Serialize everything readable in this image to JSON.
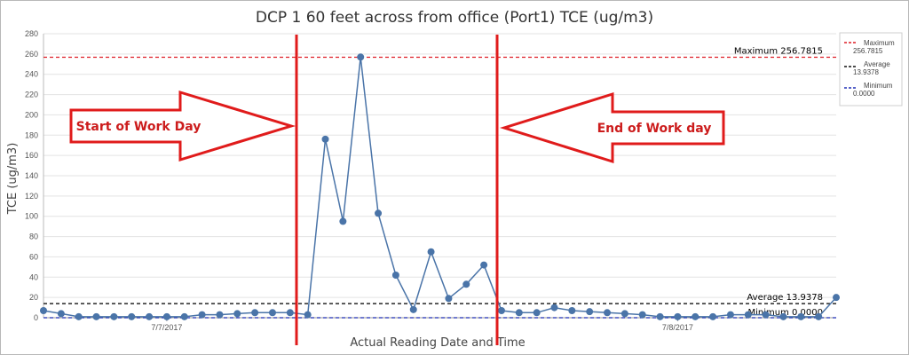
{
  "chart_data": {
    "type": "line",
    "title": "DCP 1 60 feet across from office (Port1) TCE (ug/m3)",
    "xlabel": "Actual Reading Date and Time",
    "ylabel": "TCE (ug/m3)",
    "ylim": [
      0,
      280
    ],
    "yticks": [
      0,
      20,
      40,
      60,
      80,
      100,
      120,
      140,
      160,
      180,
      200,
      220,
      240,
      260,
      280
    ],
    "xtick_labels": [
      "7/7/2017",
      "7/8/2017"
    ],
    "grid": true,
    "legend_position": "right",
    "series": [
      {
        "name": "TCE",
        "color": "#4a74a8",
        "values": [
          7,
          4,
          1,
          1,
          1,
          1,
          1,
          1,
          1,
          3,
          3,
          4,
          5,
          5,
          5,
          3,
          176,
          95,
          257,
          103,
          42,
          8,
          65,
          19,
          33,
          52,
          7,
          5,
          5,
          10,
          7,
          6,
          5,
          4,
          3,
          1,
          1,
          1,
          1,
          3,
          3,
          3,
          1,
          1,
          1,
          20
        ]
      }
    ],
    "reference_lines": [
      {
        "name": "Maximum",
        "value": 256.7815,
        "label": "Maximum 256.7815",
        "legend_text": "Maximum 256.7815",
        "color": "#dd1f26"
      },
      {
        "name": "Average",
        "value": 13.9378,
        "label": "Average 13.9378",
        "legend_text": "Average 13.9378",
        "color": "#111111"
      },
      {
        "name": "Minimum",
        "value": 0.0,
        "label": "Minimum 0.0000",
        "legend_text": "Minimum 0.0000",
        "color": "#1f2fb5"
      }
    ],
    "annotations": {
      "start_label": "Start of Work Day",
      "end_label": "End of Work day",
      "marker_color": "#e01b1b"
    }
  }
}
